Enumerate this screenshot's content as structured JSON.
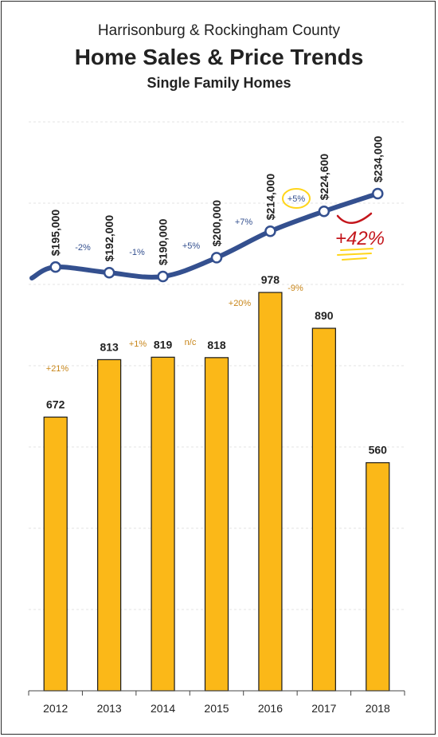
{
  "header": {
    "subtitle_top": "Harrisonburg & Rockingham County",
    "title": "Home Sales & Price Trends",
    "subtitle": "Single Family Homes"
  },
  "colors": {
    "bar": "#fbb818",
    "bar_outline": "#1a1a1a",
    "line": "#34508f",
    "bar_change_text": "#c8861a",
    "price_change_text": "#34508f",
    "annotation_red": "#c4161c",
    "annotation_yellow": "#ffd51a"
  },
  "chart_data": [
    {
      "type": "bar",
      "categories": [
        "2012",
        "2013",
        "2014",
        "2015",
        "2016",
        "2017",
        "2018"
      ],
      "values": [
        672,
        813,
        819,
        818,
        978,
        890,
        560
      ],
      "value_labels": [
        "672",
        "813",
        "819",
        "818",
        "978",
        "890",
        "560"
      ],
      "changes": [
        "",
        "+21%",
        "+1%",
        "n/c",
        "+20%",
        "-9%",
        ""
      ],
      "ylim": [
        0,
        1000
      ],
      "grid": true
    },
    {
      "type": "line",
      "categories": [
        "2012",
        "2013",
        "2014",
        "2015",
        "2016",
        "2017",
        "2018"
      ],
      "values": [
        195000,
        192000,
        190000,
        200000,
        214000,
        224600,
        234000
      ],
      "value_labels": [
        "$195,000",
        "$192,000",
        "$190,000",
        "$200,000",
        "$214,000",
        "$224,600",
        "$234,000"
      ],
      "changes": [
        "-2%",
        "-1%",
        "+5%",
        "+7%",
        "+5%"
      ],
      "highlighted_change": "+5%",
      "annotation": "+42%"
    }
  ]
}
